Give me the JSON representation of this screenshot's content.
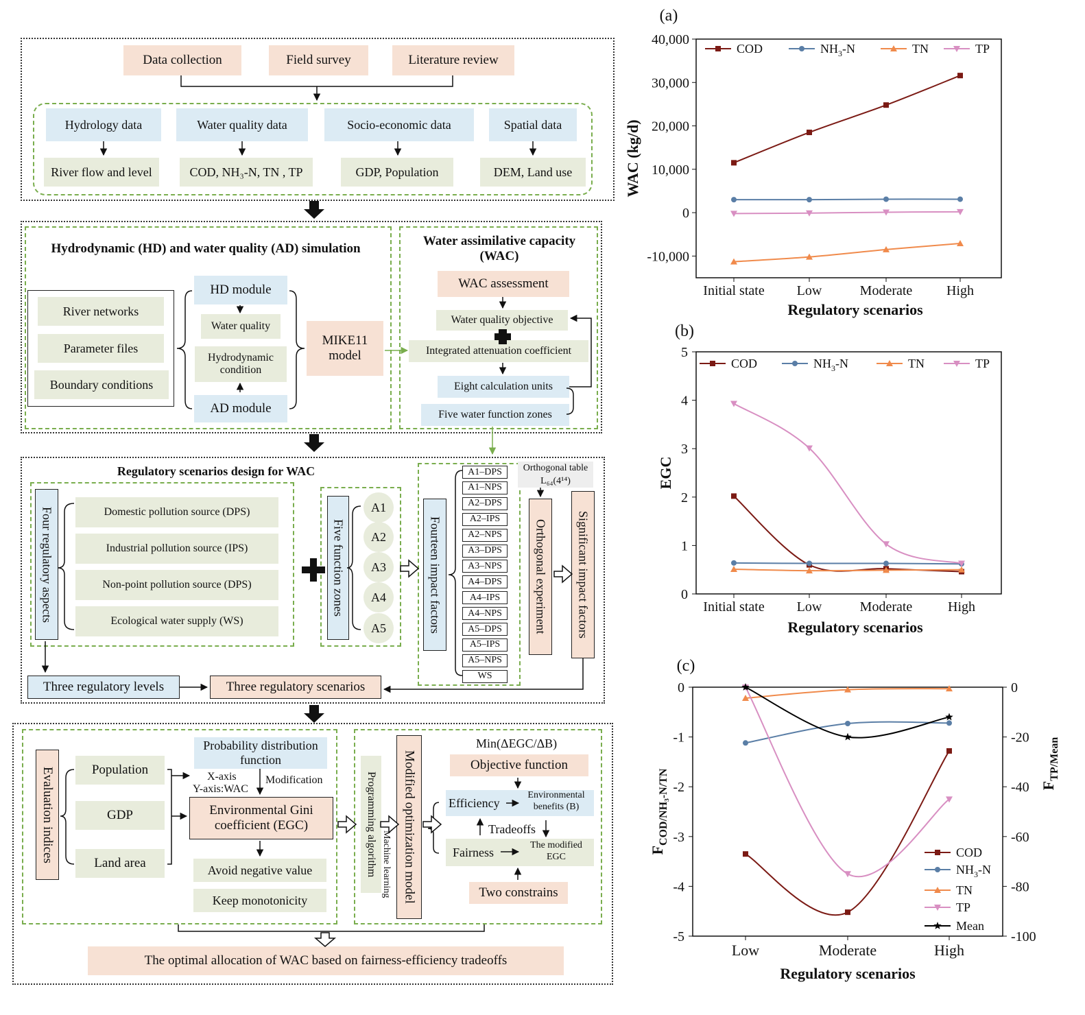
{
  "flow": {
    "top": [
      "Data collection",
      "Field survey",
      "Literature review"
    ],
    "cats": [
      "Hydrology data",
      "Water quality data",
      "Socio-economic data",
      "Spatial data"
    ],
    "subs": [
      "River flow and level",
      "COD, NH₃-N, TN , TP",
      "GDP, Population",
      "DEM, Land use"
    ],
    "hd_title": "Hydrodynamic (HD) and water quality (AD) simulation",
    "inputs": [
      "River networks",
      "Parameter files",
      "Boundary conditions"
    ],
    "hd_module": "HD module",
    "water_quality": "Water quality",
    "hydro_condition": "Hydrodynamic condition",
    "ad_module": "AD module",
    "mike": "MIKE11 model",
    "wac_title": "Water assimilative capacity (WAC)",
    "wac_assess": "WAC assessment",
    "wq_objective": "Water quality objective",
    "iac": "Integrated attenuation coefficient",
    "eight_units": "Eight calculation units",
    "five_zones": "Five water function zones",
    "reg_title": "Regulatory scenarios design for WAC",
    "four_aspects": "Four regulatory aspects",
    "aspects": [
      "Domestic pollution source (DPS)",
      "Industrial pollution source (IPS)",
      "Non-point pollution source (DPS)",
      "Ecological water supply (WS)"
    ],
    "five_fz": "Five function zones",
    "zones": [
      "A1",
      "A2",
      "A3",
      "A4",
      "A5"
    ],
    "fourteen": "Fourteen impact factors",
    "factors": [
      "A1–DPS",
      "A1–NPS",
      "A2–DPS",
      "A2–IPS",
      "A2–NPS",
      "A3–DPS",
      "A3–NPS",
      "A4–DPS",
      "A4–IPS",
      "A4–NPS",
      "A5–DPS",
      "A5–IPS",
      "A5–NPS",
      "WS"
    ],
    "ortho_table": "Orthogonal table",
    "ortho_l": "L₆₄(4¹⁴)",
    "ortho_exp": "Orthogonal experiment",
    "sig_factors": "Significant impact factors",
    "three_levels": "Three regulatory levels",
    "three_scen": "Three regulatory scenarios",
    "eval": "Evaluation indices",
    "indices": [
      "Population",
      "GDP",
      "Land area"
    ],
    "pdf": "Probability distribution function",
    "xaxis": "X-axis",
    "yaxis": "Y-axis:WAC",
    "modification": "Modification",
    "egc": "Environmental Gini coefficient (EGC)",
    "avoid": "Avoid negative value",
    "keep": "Keep monotonicity",
    "prog": "Programming algorithm",
    "ml": "Machine learning",
    "mom": "Modified optimization model",
    "minexpr": "Min(ΔEGC/ΔB)",
    "objfun": "Objective function",
    "efficiency": "Efficiency",
    "envben": "Environmental benefits (B)",
    "tradeoffs": "Tradeoffs",
    "fairness": "Fairness",
    "modegc": "The modified EGC",
    "twocon": "Two constrains",
    "optimal": "The optimal allocation of WAC based on fairness-efficiency tradeoffs"
  },
  "colors": {
    "COD": "#7b1a14",
    "NH3N": "#5a7ea6",
    "TN": "#f08a4b",
    "TP": "#d88fc2",
    "Mean": "#000000",
    "dash": "#79ad4d",
    "pink": "#f7e1d4",
    "blue": "#dcebf4",
    "green": "#e8ecdc"
  },
  "chart_data": [
    {
      "panel": "(a)",
      "type": "line",
      "categories": [
        "Initial state",
        "Low",
        "Moderate",
        "High"
      ],
      "xlabel": "Regulatory scenarios",
      "ylabel": "WAC (kg/d)",
      "ylim": [
        -15000,
        40000
      ],
      "yticks": [
        "-10,000",
        "0",
        "10,000",
        "20,000",
        "30,000",
        "40,000"
      ],
      "series": [
        {
          "name": "COD",
          "values": [
            11500,
            18500,
            24800,
            31600
          ]
        },
        {
          "name": "NH₃-N",
          "values": [
            3000,
            3000,
            3100,
            3100
          ]
        },
        {
          "name": "TN",
          "values": [
            -11300,
            -10200,
            -8500,
            -7100
          ]
        },
        {
          "name": "TP",
          "values": [
            -200,
            -100,
            100,
            200
          ]
        }
      ],
      "legend": "top"
    },
    {
      "panel": "(b)",
      "type": "line",
      "categories": [
        "Initial state",
        "Low",
        "Moderate",
        "High"
      ],
      "xlabel": "Regulatory scenarios",
      "ylabel": "EGC",
      "ylim": [
        0,
        5
      ],
      "yticks": [
        "0",
        "1",
        "2",
        "3",
        "4",
        "5"
      ],
      "series": [
        {
          "name": "COD",
          "values": [
            2.02,
            0.6,
            0.52,
            0.46
          ]
        },
        {
          "name": "NH₃-N",
          "values": [
            0.64,
            0.63,
            0.63,
            0.62
          ]
        },
        {
          "name": "TN",
          "values": [
            0.51,
            0.48,
            0.49,
            0.5
          ]
        },
        {
          "name": "TP",
          "values": [
            3.93,
            3.01,
            1.03,
            0.63
          ]
        }
      ],
      "legend": "top"
    },
    {
      "panel": "(c)",
      "type": "line",
      "categories": [
        "Low",
        "Moderate",
        "High"
      ],
      "xlabel": "Regulatory scenarios",
      "ylabel_left": "F",
      "ylabel_left_sub": "COD/NH₃-N/TN",
      "ylabel_right": "F",
      "ylabel_right_sub": "TP/Mean",
      "ylim_left": [
        -5,
        0
      ],
      "ylim_right": [
        -100,
        0
      ],
      "yticks_left": [
        "0",
        "-1",
        "-2",
        "-3",
        "-4",
        "-5"
      ],
      "yticks_right": [
        "0",
        "-20",
        "-40",
        "-60",
        "-80",
        "-100"
      ],
      "series": [
        {
          "name": "COD",
          "axis": "left",
          "values": [
            -3.35,
            -4.52,
            -1.28
          ]
        },
        {
          "name": "NH₃-N",
          "axis": "left",
          "values": [
            -1.12,
            -0.73,
            -0.72
          ]
        },
        {
          "name": "TN",
          "axis": "left",
          "values": [
            -0.22,
            -0.05,
            -0.03
          ]
        },
        {
          "name": "TP",
          "axis": "right",
          "values": [
            0,
            -75,
            -45
          ]
        },
        {
          "name": "Mean",
          "axis": "right",
          "values": [
            0,
            -20,
            -12
          ]
        }
      ],
      "legend": "bottom-right"
    }
  ]
}
